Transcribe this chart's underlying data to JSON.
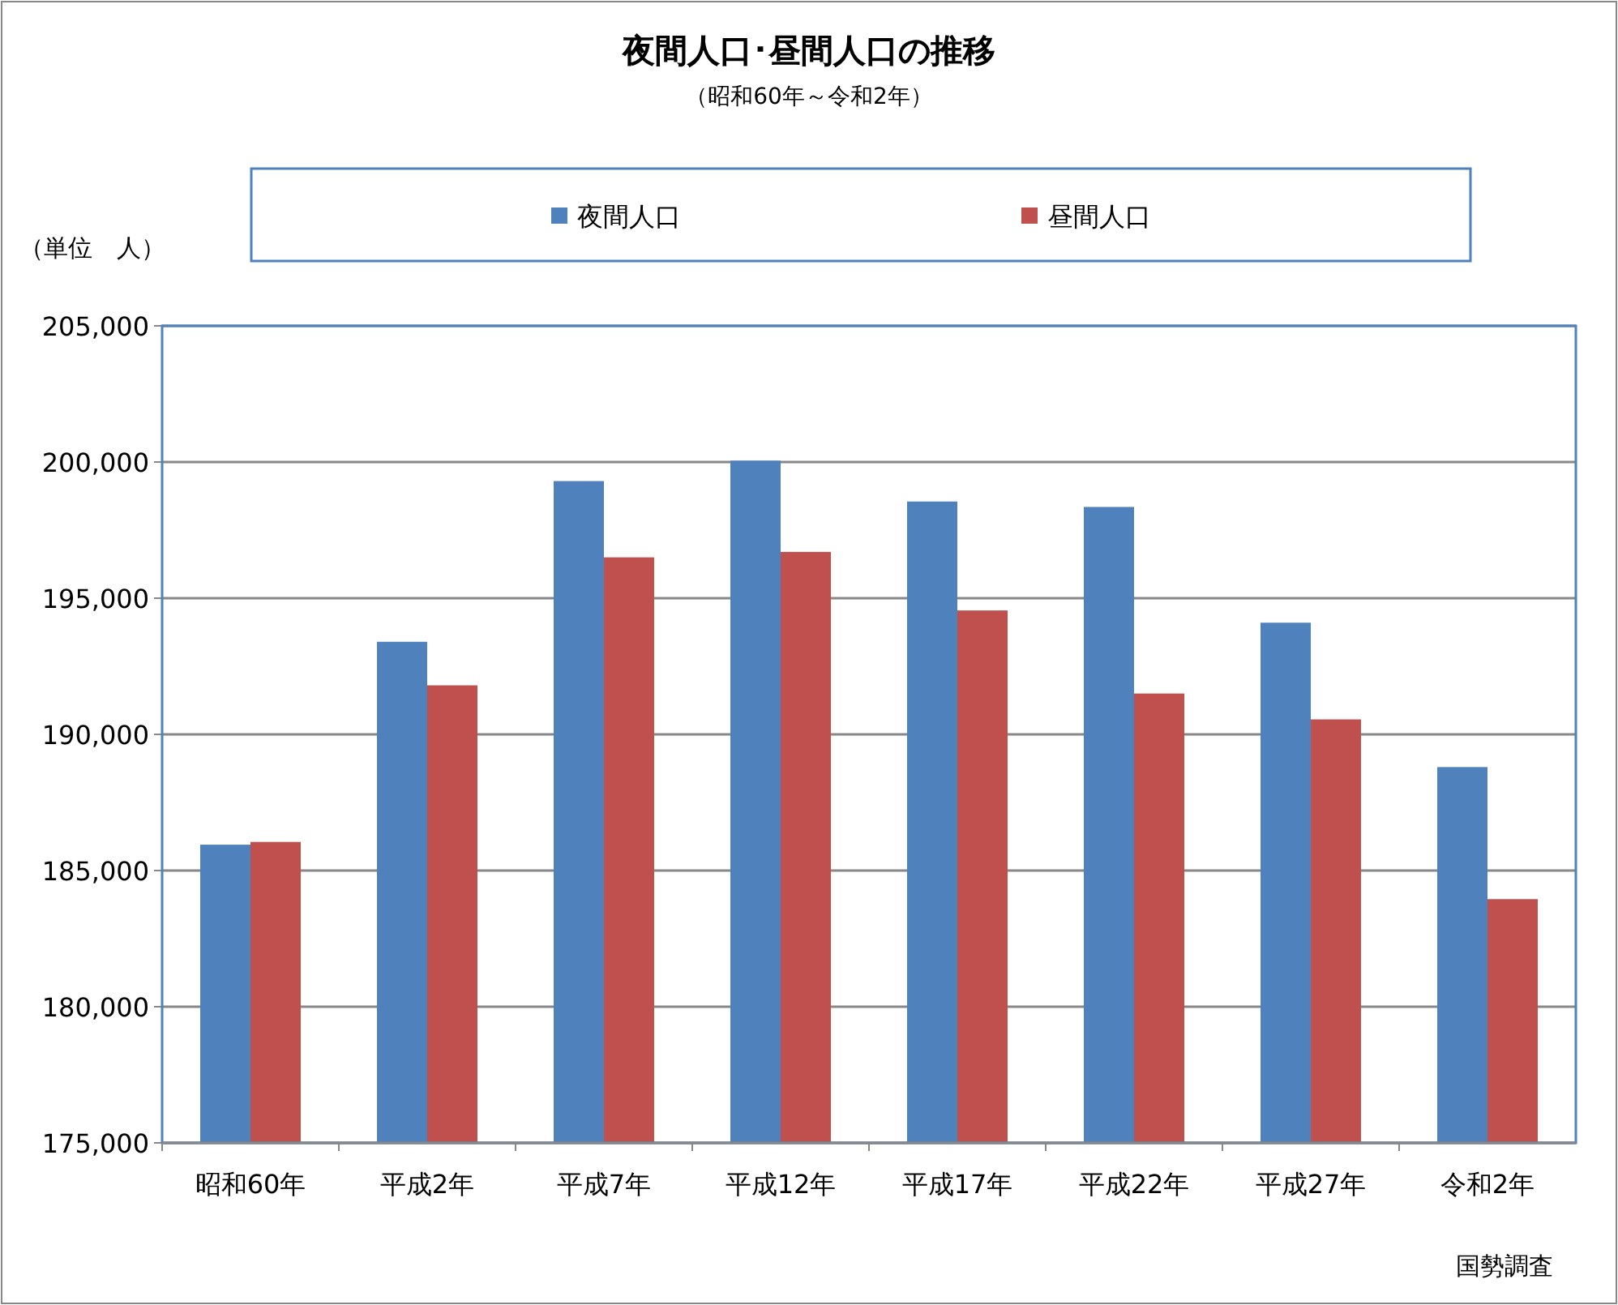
{
  "chart_data": {
    "type": "bar",
    "title": "夜間人口･昼間人口の推移",
    "subtitle": "（昭和60年～令和2年）",
    "ylabel": "（単位　人）",
    "categories": [
      "昭和60年",
      "平成2年",
      "平成7年",
      "平成12年",
      "平成17年",
      "平成22年",
      "平成27年",
      "令和2年"
    ],
    "series": [
      {
        "name": "夜間人口",
        "color": "#4f81bd",
        "values": [
          185950,
          193400,
          199300,
          200050,
          198550,
          198350,
          194100,
          188800
        ]
      },
      {
        "name": "昼間人口",
        "color": "#c0504d",
        "values": [
          186050,
          191800,
          196500,
          196700,
          194550,
          191500,
          190550,
          183950
        ]
      }
    ],
    "ylim": [
      175000,
      205000
    ],
    "yticks": [
      {
        "value": 175000,
        "label": "175,000"
      },
      {
        "value": 180000,
        "label": "180,000"
      },
      {
        "value": 185000,
        "label": "185,000"
      },
      {
        "value": 190000,
        "label": "190,000"
      },
      {
        "value": 195000,
        "label": "195,000"
      },
      {
        "value": 200000,
        "label": "200,000"
      },
      {
        "value": 205000,
        "label": "205,000"
      }
    ],
    "grid": "y",
    "legend": "top",
    "annotations": [
      "国勢調査"
    ]
  }
}
